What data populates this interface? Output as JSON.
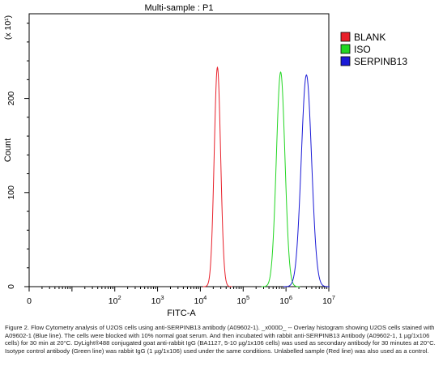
{
  "chart_data": {
    "type": "line",
    "title": "Multi-sample : P1",
    "xlabel": "FITC-A",
    "ylabel": "Count",
    "y_multiplier_label": "(x 10¹)",
    "x_scale": "log",
    "xlim": [
      1,
      10000000
    ],
    "ylim": [
      0,
      290
    ],
    "x_ticks": [
      {
        "value": 1,
        "label": "0",
        "exp": ""
      },
      {
        "value": 100,
        "label": "10",
        "exp": "2"
      },
      {
        "value": 1000,
        "label": "10",
        "exp": "3"
      },
      {
        "value": 10000,
        "label": "10",
        "exp": "4"
      },
      {
        "value": 100000,
        "label": "10",
        "exp": "5"
      },
      {
        "value": 1000000,
        "label": "10",
        "exp": "6"
      },
      {
        "value": 10000000,
        "label": "10",
        "exp": "7"
      }
    ],
    "y_ticks": [
      {
        "value": 0,
        "label": "0"
      },
      {
        "value": 100,
        "label": "100"
      },
      {
        "value": 200,
        "label": "200"
      }
    ],
    "legend_position": "right",
    "series": [
      {
        "name": "BLANK",
        "color": "#e8202a",
        "peak_x": 25000,
        "peak_y": 233,
        "width_log": 0.075
      },
      {
        "name": "ISO",
        "color": "#22d622",
        "peak_x": 750000,
        "peak_y": 228,
        "width_log": 0.1
      },
      {
        "name": "SERPINB13",
        "color": "#1a1ad6",
        "peak_x": 3000000,
        "peak_y": 225,
        "width_log": 0.12
      }
    ]
  },
  "caption": "Figure 2. Flow Cytometry analysis of U2OS cells using anti-SERPINB13 antibody (A09602-1). _x000D_ -- Overlay histogram showing U2OS cells stained with A09602-1 (Blue line). The cells were blocked with 10% normal goat serum. And then incubated with rabbit anti-SERPINB13 Antibody (A09602-1, 1 µg/1x106 cells) for 30 min at 20°C. DyLight®488 conjugated goat anti-rabbit IgG (BA1127, 5-10 µg/1x106 cells) was used as secondary antibody for 30 minutes at 20°C. Isotype control antibody (Green line) was rabbit IgG (1 µg/1x106) used under the same conditions. Unlabelled sample (Red line) was also used as a control."
}
